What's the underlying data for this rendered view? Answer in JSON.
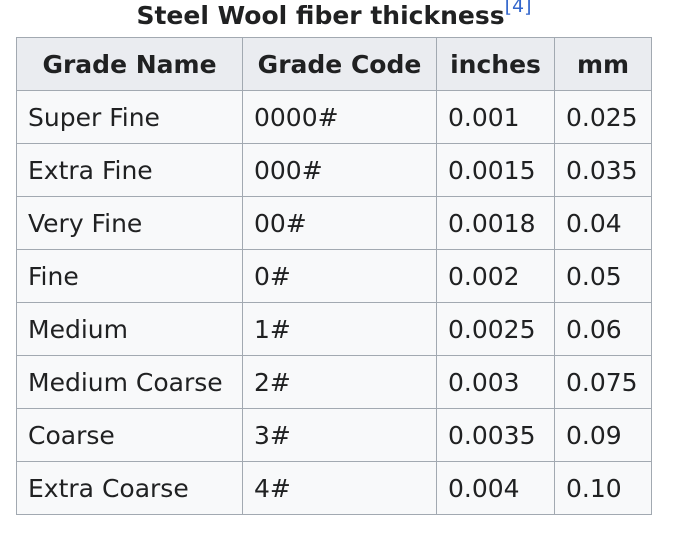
{
  "caption": {
    "title": "Steel Wool fiber thickness",
    "reference": "[4]"
  },
  "table": {
    "headers": [
      "Grade Name",
      "Grade Code",
      "inches",
      "mm"
    ],
    "rows": [
      [
        "Super Fine",
        "0000#",
        "0.001",
        "0.025"
      ],
      [
        "Extra Fine",
        "000#",
        "0.0015",
        "0.035"
      ],
      [
        "Very Fine",
        "00#",
        "0.0018",
        "0.04"
      ],
      [
        "Fine",
        "0#",
        "0.002",
        "0.05"
      ],
      [
        "Medium",
        "1#",
        "0.0025",
        "0.06"
      ],
      [
        "Medium Coarse",
        "2#",
        "0.003",
        "0.075"
      ],
      [
        "Coarse",
        "3#",
        "0.0035",
        "0.09"
      ],
      [
        "Extra Coarse",
        "4#",
        "0.004",
        "0.10"
      ]
    ]
  },
  "colors": {
    "header_bg": "#eaecf0",
    "cell_bg": "#f8f9fa",
    "border": "#a2a9b1",
    "text": "#202122",
    "link": "#3366cc"
  }
}
